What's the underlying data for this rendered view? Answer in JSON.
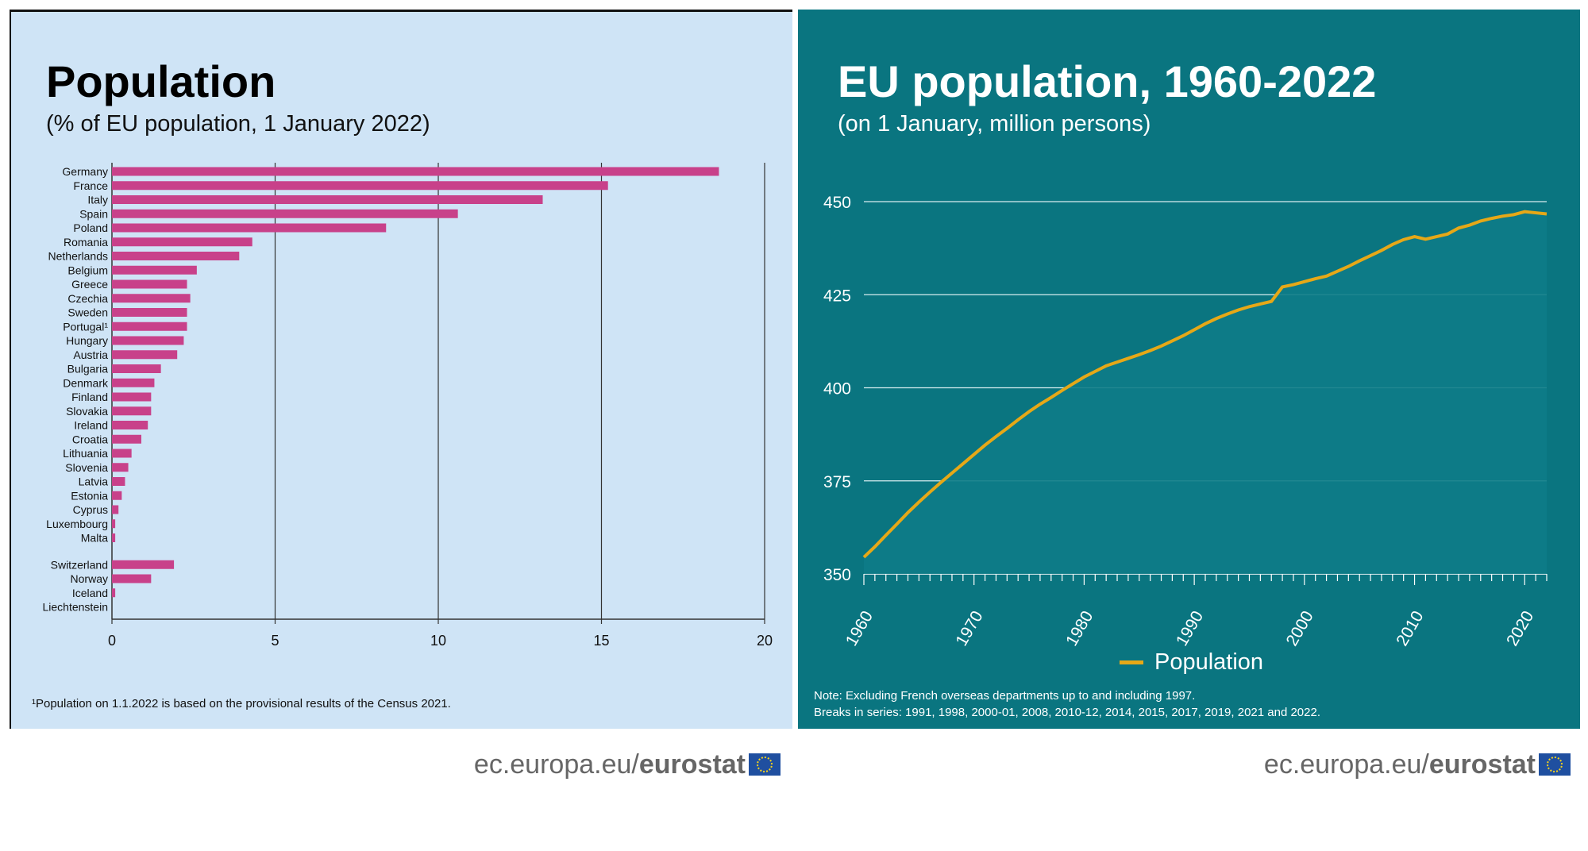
{
  "left": {
    "title": "Population",
    "subtitle": "(% of EU population, 1 January 2022)",
    "footnote": "¹Population on 1.1.2022 is based on the provisional results of the Census 2021.",
    "brand_prefix": "ec.europa.eu/",
    "brand_name": "eurostat",
    "bar_color": "#c8418a",
    "background": "#cfe4f6"
  },
  "right": {
    "title": "EU population, 1960-2022",
    "subtitle": "(on 1 January, million persons)",
    "legend_label": "Population",
    "note1": "Note: Excluding French overseas departments up to and including 1997.",
    "note2": "Breaks in series: 1991, 1998, 2000-01, 2008, 2010-12, 2014, 2015, 2017, 2019, 2021 and 2022.",
    "brand_prefix": "ec.europa.eu/",
    "brand_name": "eurostat",
    "line_color": "#e6a817",
    "background": "#0a7580"
  },
  "chart_data": [
    {
      "type": "bar",
      "orientation": "horizontal",
      "title": "Population",
      "subtitle": "(% of EU population, 1 January 2022)",
      "xlim": [
        0,
        20
      ],
      "xticks": [
        0,
        5,
        10,
        15,
        20
      ],
      "grid": true,
      "categories": [
        "Germany",
        "France",
        "Italy",
        "Spain",
        "Poland",
        "Romania",
        "Netherlands",
        "Belgium",
        "Greece",
        "Czechia",
        "Sweden",
        "Portugal¹",
        "Hungary",
        "Austria",
        "Bulgaria",
        "Denmark",
        "Finland",
        "Slovakia",
        "Ireland",
        "Croatia",
        "Lithuania",
        "Slovenia",
        "Latvia",
        "Estonia",
        "Cyprus",
        "Luxembourg",
        "Malta",
        "Switzerland",
        "Norway",
        "Iceland",
        "Liechtenstein"
      ],
      "values": [
        18.6,
        15.2,
        13.2,
        10.6,
        8.4,
        4.3,
        3.9,
        2.6,
        2.3,
        2.4,
        2.3,
        2.3,
        2.2,
        2.0,
        1.5,
        1.3,
        1.2,
        1.2,
        1.1,
        0.9,
        0.6,
        0.5,
        0.4,
        0.3,
        0.2,
        0.1,
        0.1,
        1.9,
        1.2,
        0.1,
        0.0
      ]
    },
    {
      "type": "line",
      "title": "EU population, 1960-2022",
      "subtitle": "(on 1 January, million persons)",
      "ylim": [
        350,
        450
      ],
      "yticks": [
        350,
        375,
        400,
        425,
        450
      ],
      "xticks": [
        1960,
        1970,
        1980,
        1990,
        2000,
        2010,
        2020
      ],
      "grid": true,
      "legend": "bottom",
      "series": [
        {
          "name": "Population",
          "x": [
            1960,
            1961,
            1962,
            1963,
            1964,
            1965,
            1966,
            1967,
            1968,
            1969,
            1970,
            1971,
            1972,
            1973,
            1974,
            1975,
            1976,
            1977,
            1978,
            1979,
            1980,
            1981,
            1982,
            1983,
            1984,
            1985,
            1986,
            1987,
            1988,
            1989,
            1990,
            1991,
            1992,
            1993,
            1994,
            1995,
            1996,
            1997,
            1998,
            1999,
            2000,
            2001,
            2002,
            2003,
            2004,
            2005,
            2006,
            2007,
            2008,
            2009,
            2010,
            2011,
            2012,
            2013,
            2014,
            2015,
            2016,
            2017,
            2018,
            2019,
            2020,
            2021,
            2022
          ],
          "values": [
            354.5,
            357.3,
            360.4,
            363.4,
            366.5,
            369.3,
            372.0,
            374.6,
            377.1,
            379.6,
            382.1,
            384.6,
            386.9,
            389.1,
            391.4,
            393.6,
            395.6,
            397.4,
            399.3,
            401.1,
            402.9,
            404.4,
            405.9,
            406.9,
            407.9,
            408.9,
            410.0,
            411.2,
            412.6,
            414.0,
            415.6,
            417.2,
            418.6,
            419.8,
            420.9,
            421.8,
            422.5,
            423.2,
            427.1,
            427.7,
            428.5,
            429.3,
            430.0,
            431.3,
            432.6,
            434.1,
            435.5,
            436.9,
            438.5,
            439.8,
            440.6,
            439.9,
            440.6,
            441.3,
            442.9,
            443.7,
            444.8,
            445.5,
            446.1,
            446.5,
            447.3,
            447.0,
            446.7
          ]
        }
      ]
    }
  ]
}
